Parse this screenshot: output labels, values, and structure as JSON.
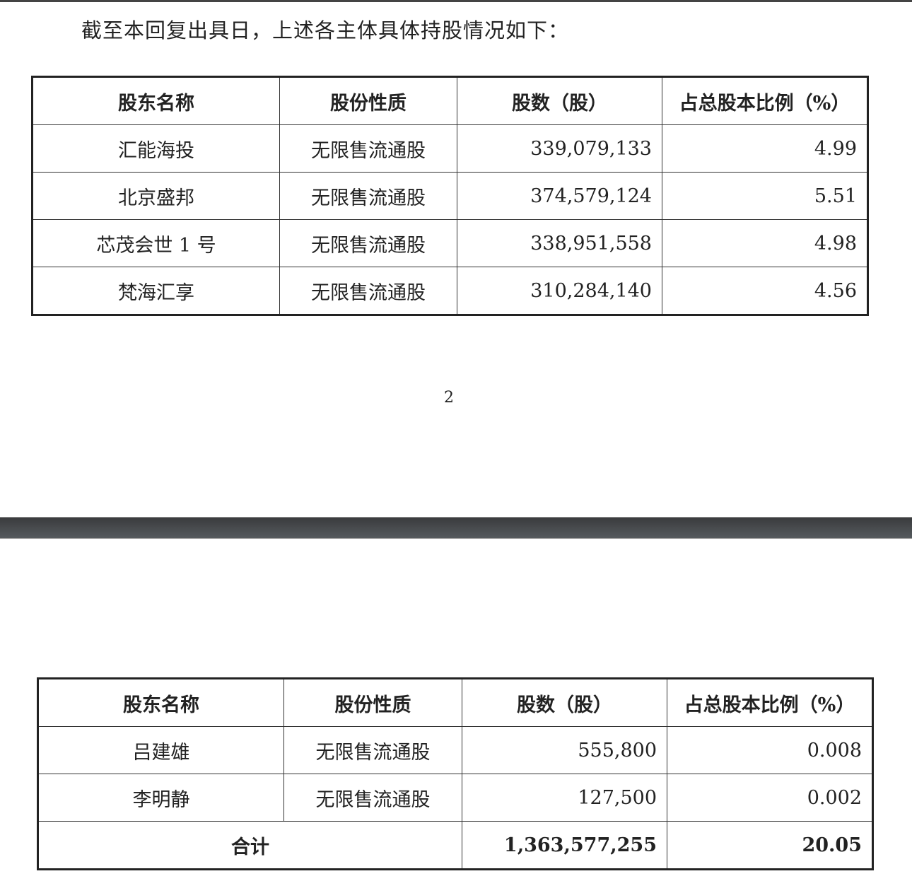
{
  "intro_text": "截至本回复出具日，上述各主体具体持股情况如下：",
  "columns": [
    "股东名称",
    "股份性质",
    "股数（股）",
    "占总股本比例（%）"
  ],
  "page1": {
    "rows": [
      {
        "name": "汇能海投",
        "type": "无限售流通股",
        "shares": "339,079,133",
        "ratio": "4.99"
      },
      {
        "name": "北京盛邦",
        "type": "无限售流通股",
        "shares": "374,579,124",
        "ratio": "5.51"
      },
      {
        "name": "芯茂会世 1 号",
        "type": "无限售流通股",
        "shares": "338,951,558",
        "ratio": "4.98"
      },
      {
        "name": "梵海汇享",
        "type": "无限售流通股",
        "shares": "310,284,140",
        "ratio": "4.56"
      }
    ],
    "page_number": "2"
  },
  "page2": {
    "rows": [
      {
        "name": "吕建雄",
        "type": "无限售流通股",
        "shares": "555,800",
        "ratio": "0.008"
      },
      {
        "name": "李明静",
        "type": "无限售流通股",
        "shares": "127,500",
        "ratio": "0.002"
      }
    ],
    "total": {
      "label": "合计",
      "shares": "1,363,577,255",
      "ratio": "20.05"
    }
  }
}
